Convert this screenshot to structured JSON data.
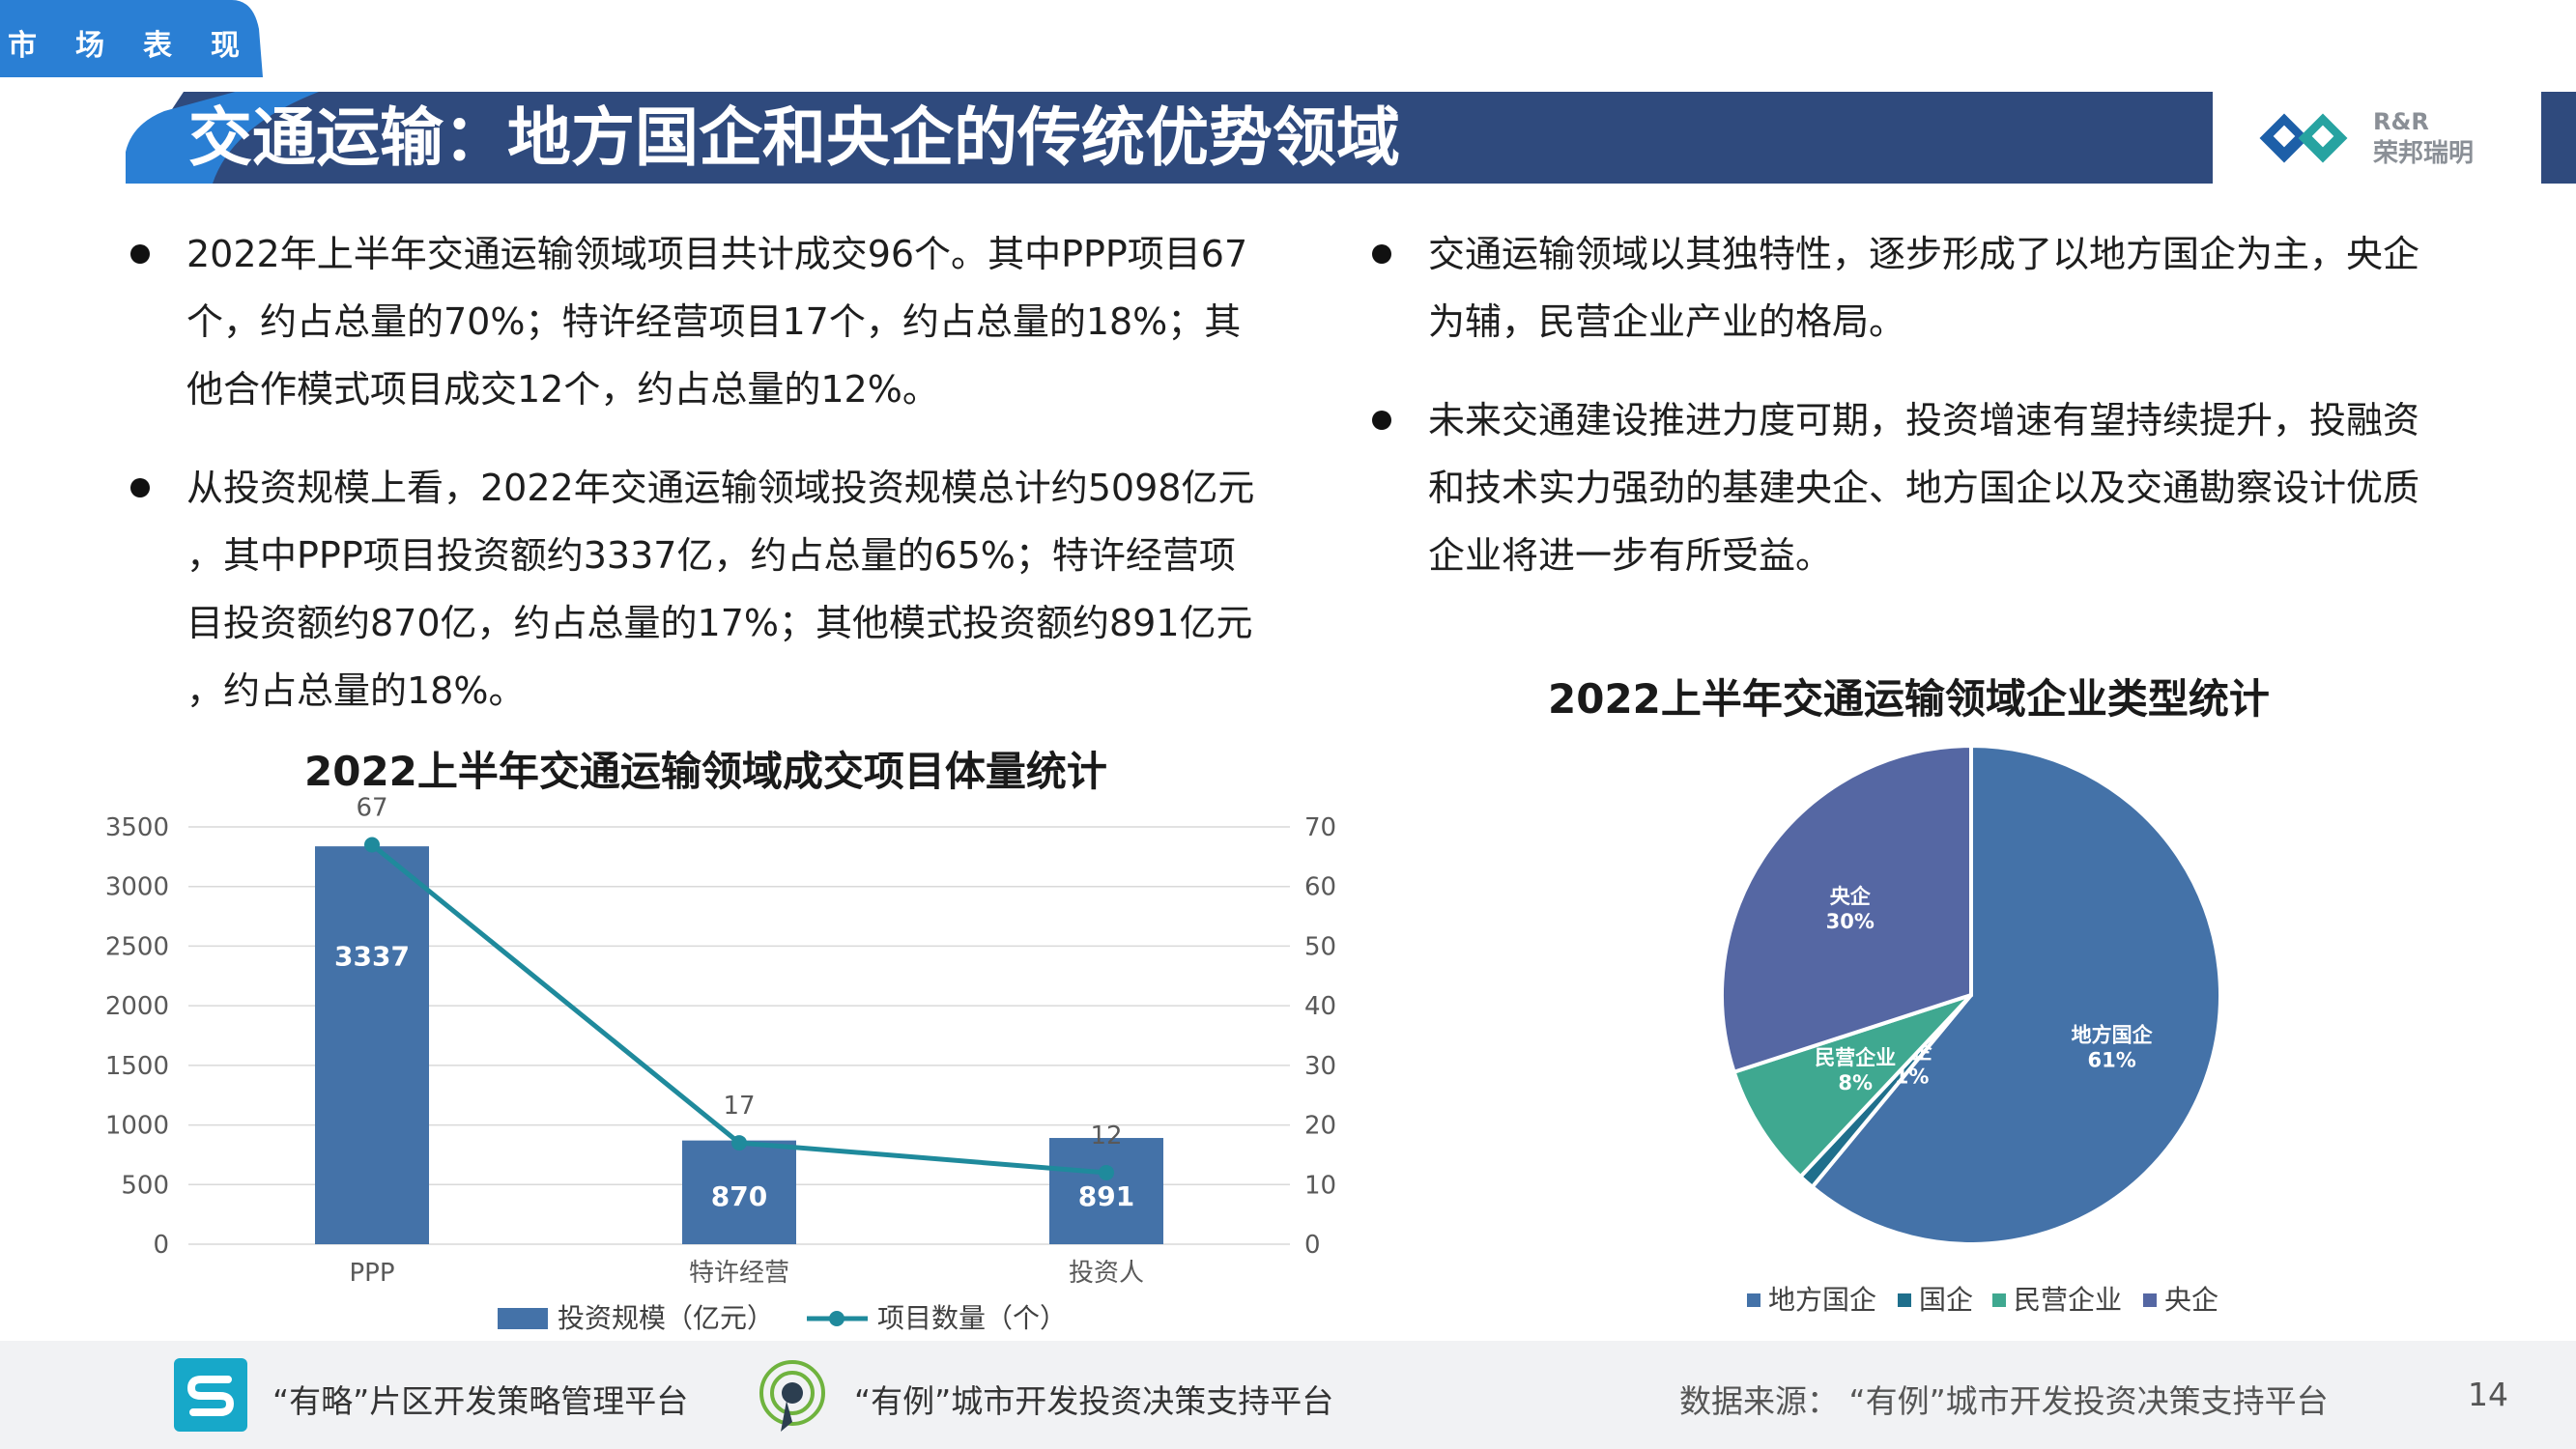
{
  "header": {
    "corner_tag": "市场表现",
    "title": "交通运输：地方国企和央企的传统优势领域",
    "logo_line1": "R&R",
    "logo_line2": "荣邦瑞明"
  },
  "left_bullets": [
    {
      "lines": [
        "2022年上半年交通运输领域项目共计成交96个。其中PPP项目67",
        "个，约占总量的70%；特许经营项目17个，约占总量的18%；其",
        "他合作模式项目成交12个，约占总量的12%。"
      ]
    },
    {
      "lines": [
        "从投资规模上看，2022年交通运输领域投资规模总计约5098亿元",
        "，其中PPP项目投资额约3337亿，约占总量的65%；特许经营项",
        "目投资额约870亿，约占总量的17%；其他模式投资额约891亿元",
        "，约占总量的18%。"
      ]
    }
  ],
  "right_bullets": [
    {
      "lines": [
        "交通运输领域以其独特性，逐步形成了以地方国企为主，央企",
        "为辅，民营企业产业的格局。"
      ]
    },
    {
      "lines": [
        "未来交通建设推进力度可期，投资增速有望持续提升，投融资",
        "和技术实力强劲的基建央企、地方国企以及交通勘察设计优质",
        "企业将进一步有所受益。"
      ]
    }
  ],
  "chart_data": [
    {
      "type": "bar",
      "title": "2022上半年交通运输领域成交项目体量统计",
      "categories": [
        "PPP",
        "特许经营",
        "投资人"
      ],
      "series": [
        {
          "name": "投资规模（亿元）",
          "kind": "bar",
          "axis": "left",
          "values": [
            3337,
            870,
            891
          ],
          "color": "#4472a8"
        },
        {
          "name": "项目数量（个）",
          "kind": "line",
          "axis": "right",
          "values": [
            67,
            17,
            12
          ],
          "color": "#1f8a9c"
        }
      ],
      "ylim_left": [
        0,
        3500
      ],
      "yticks_left": [
        "0",
        "500",
        "1000",
        "1500",
        "2000",
        "2500",
        "3000",
        "3500"
      ],
      "ylim_right": [
        0,
        70
      ],
      "yticks_right": [
        "0",
        "10",
        "20",
        "30",
        "40",
        "50",
        "60",
        "70"
      ],
      "legend_position": "bottom",
      "grid": true
    },
    {
      "type": "pie",
      "title": "2022上半年交通运输领域企业类型统计",
      "slices": [
        {
          "name": "地方国企",
          "value": 61,
          "label": "61%",
          "color": "#4472a8"
        },
        {
          "name": "国企",
          "value": 1,
          "label": "1%",
          "color": "#1f6f8c"
        },
        {
          "name": "民营企业",
          "value": 8,
          "label": "8%",
          "color": "#3fa890"
        },
        {
          "name": "央企",
          "value": 30,
          "label": "30%",
          "color": "#5567a3"
        }
      ],
      "legend_position": "bottom"
    }
  ],
  "footer": {
    "platform1": "“有略”片区开发策略管理平台",
    "platform2": "“有例”城市开发投资决策支持平台",
    "source": "数据来源：  “有例”城市开发投资决策支持平台",
    "page_number": "14"
  }
}
